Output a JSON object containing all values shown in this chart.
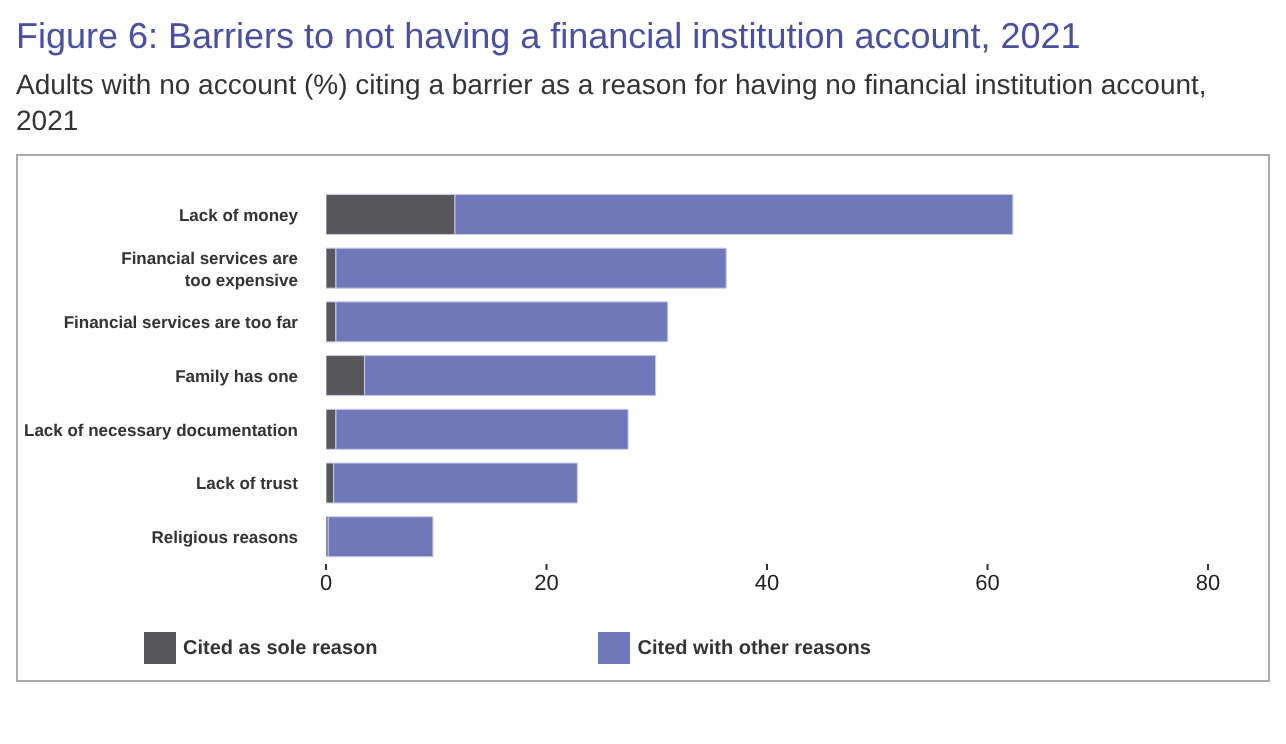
{
  "chart_data": {
    "type": "bar",
    "orientation": "horizontal",
    "stacked": true,
    "title": "Figure 6: Barriers to not having a financial institution account, 2021",
    "subtitle": "Adults with no account (%) citing a barrier as a reason for having no financial institution account, 2021",
    "categories": [
      "Lack of money",
      "Financial services are too expensive",
      "Financial services are too far",
      "Family has one",
      "Lack of necessary documentation",
      "Lack of trust",
      "Religious reasons"
    ],
    "series": [
      {
        "name": "Cited as sole reason",
        "color": "#58585c",
        "values": [
          11.7,
          0.9,
          0.9,
          3.5,
          0.9,
          0.7,
          0.2
        ]
      },
      {
        "name": "Cited with other reasons",
        "color": "#6f78b8",
        "values": [
          50.6,
          35.4,
          30.1,
          26.4,
          26.5,
          22.1,
          9.5
        ]
      }
    ],
    "xlim": [
      0,
      80
    ],
    "xticks": [
      0,
      20,
      40,
      60,
      80
    ],
    "legend": "bottom"
  }
}
